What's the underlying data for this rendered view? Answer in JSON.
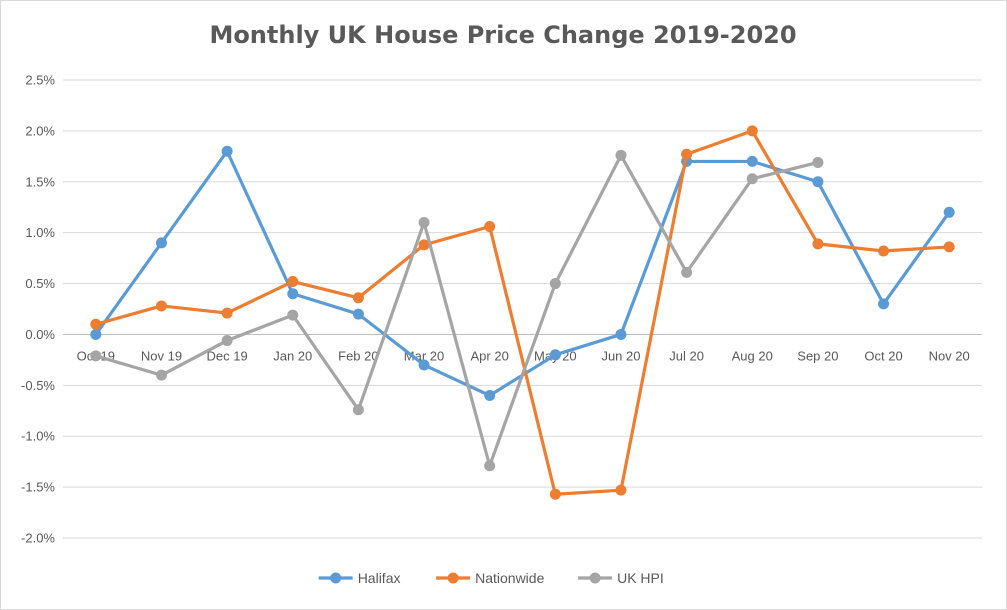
{
  "chart_data": {
    "type": "line",
    "title": "Monthly UK House Price Change 2019-2020",
    "xlabel": "",
    "ylabel": "",
    "ylim": [
      -2.0,
      2.5
    ],
    "ytick_values": [
      2.5,
      2.0,
      1.5,
      1.0,
      0.5,
      0.0,
      -0.5,
      -1.0,
      -1.5,
      -2.0
    ],
    "ytick_labels": [
      "2.5%",
      "2.0%",
      "1.5%",
      "1.0%",
      "0.5%",
      "0.0%",
      "-0.5%",
      "-1.0%",
      "-1.5%",
      "-2.0%"
    ],
    "grid": true,
    "legend_position": "bottom",
    "categories": [
      "Oct 19",
      "Nov 19",
      "Dec 19",
      "Jan 20",
      "Feb 20",
      "Mar 20",
      "Apr 20",
      "May 20",
      "Jun 20",
      "Jul 20",
      "Aug 20",
      "Sep 20",
      "Oct 20",
      "Nov 20"
    ],
    "series": [
      {
        "name": "Halifax",
        "color": "#5b9bd5",
        "values": [
          0.0,
          0.9,
          1.8,
          0.4,
          0.2,
          -0.3,
          -0.6,
          -0.2,
          0.0,
          1.7,
          1.7,
          1.5,
          0.3,
          1.2
        ]
      },
      {
        "name": "Nationwide",
        "color": "#ed7d31",
        "values": [
          0.1,
          0.28,
          0.21,
          0.52,
          0.36,
          0.88,
          1.06,
          -1.57,
          -1.53,
          1.77,
          2.0,
          0.89,
          0.82,
          0.86
        ]
      },
      {
        "name": "UK HPI",
        "color": "#a5a5a5",
        "values": [
          -0.21,
          -0.4,
          -0.06,
          0.19,
          -0.74,
          1.1,
          -1.29,
          0.5,
          1.76,
          0.61,
          1.53,
          1.69,
          null,
          null
        ]
      }
    ]
  }
}
